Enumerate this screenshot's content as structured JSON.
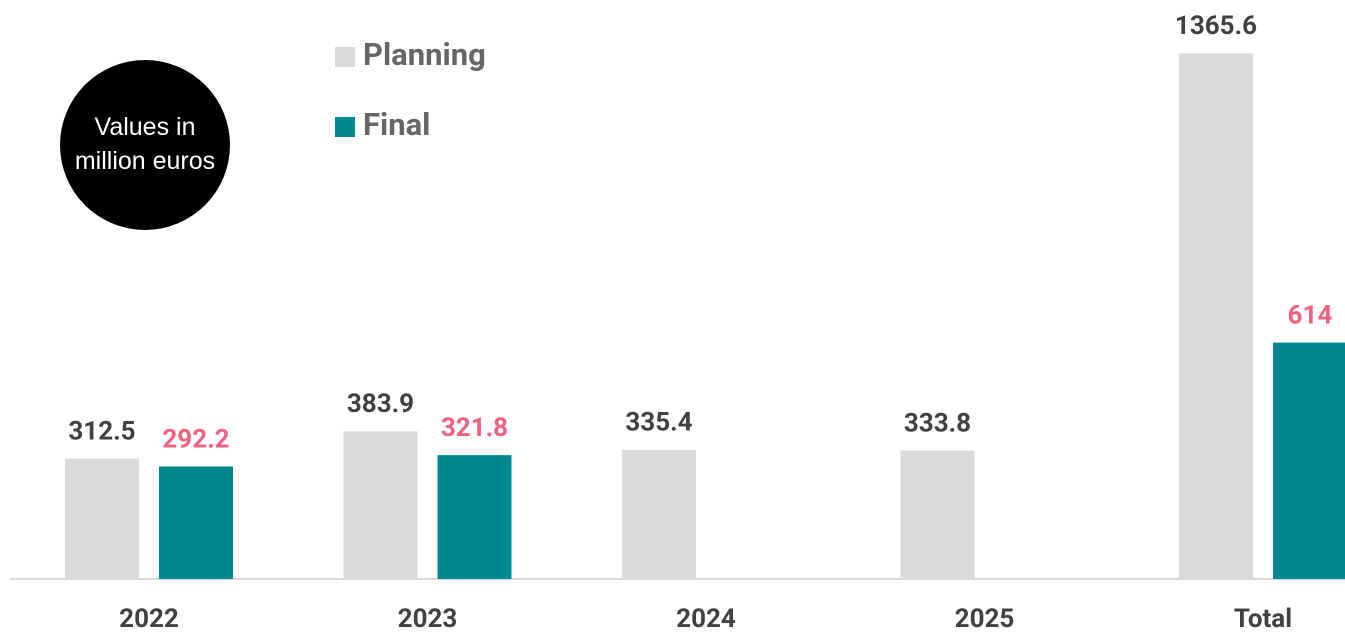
{
  "chart_data": {
    "type": "bar",
    "annotation": "Values in million euros",
    "categories": [
      "2022",
      "2023",
      "2024",
      "2025",
      "Total"
    ],
    "series": [
      {
        "name": "Planning",
        "color": "#d9dada",
        "label_color": "#404040",
        "values": [
          312.5,
          383.9,
          335.4,
          333.8,
          1365.6
        ]
      },
      {
        "name": "Final",
        "color": "#008891",
        "label_color": "#f0607f",
        "values": [
          292.2,
          321.8,
          null,
          null,
          614
        ]
      }
    ],
    "ylim": [
      0,
      1400
    ],
    "legend": "top-left"
  }
}
